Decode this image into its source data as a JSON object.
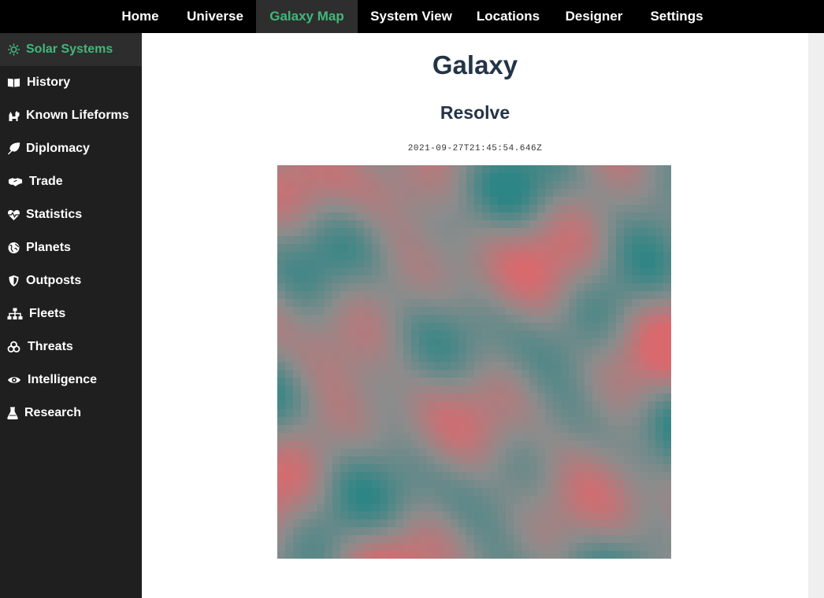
{
  "topnav": {
    "tabs": [
      {
        "label": "Home"
      },
      {
        "label": "Universe"
      },
      {
        "label": "Galaxy Map",
        "active": true
      },
      {
        "label": "System View"
      },
      {
        "label": "Locations"
      },
      {
        "label": "Designer"
      },
      {
        "label": "Settings"
      }
    ]
  },
  "sidebar": {
    "items": [
      {
        "label": "Solar Systems",
        "icon": "sun-icon",
        "active": true
      },
      {
        "label": "History",
        "icon": "book-icon"
      },
      {
        "label": "Known Lifeforms",
        "icon": "cat-icon"
      },
      {
        "label": "Diplomacy",
        "icon": "feather-icon"
      },
      {
        "label": "Trade",
        "icon": "handshake-icon"
      },
      {
        "label": "Statistics",
        "icon": "heartbeat-icon"
      },
      {
        "label": "Planets",
        "icon": "globe-icon"
      },
      {
        "label": "Outposts",
        "icon": "shield-icon"
      },
      {
        "label": "Fleets",
        "icon": "sitemap-icon"
      },
      {
        "label": "Threats",
        "icon": "biohazard-icon"
      },
      {
        "label": "Intelligence",
        "icon": "eye-icon"
      },
      {
        "label": "Research",
        "icon": "flask-icon"
      }
    ]
  },
  "main": {
    "title": "Galaxy",
    "subtitle": "Resolve",
    "timestamp": "2021-09-27T21:45:54.646Z"
  },
  "colors": {
    "accent": "#3fb97a",
    "heading": "#243447",
    "map_red": "#d86a6e",
    "map_teal": "#2e8585",
    "map_gray": "#8c8c8c"
  }
}
